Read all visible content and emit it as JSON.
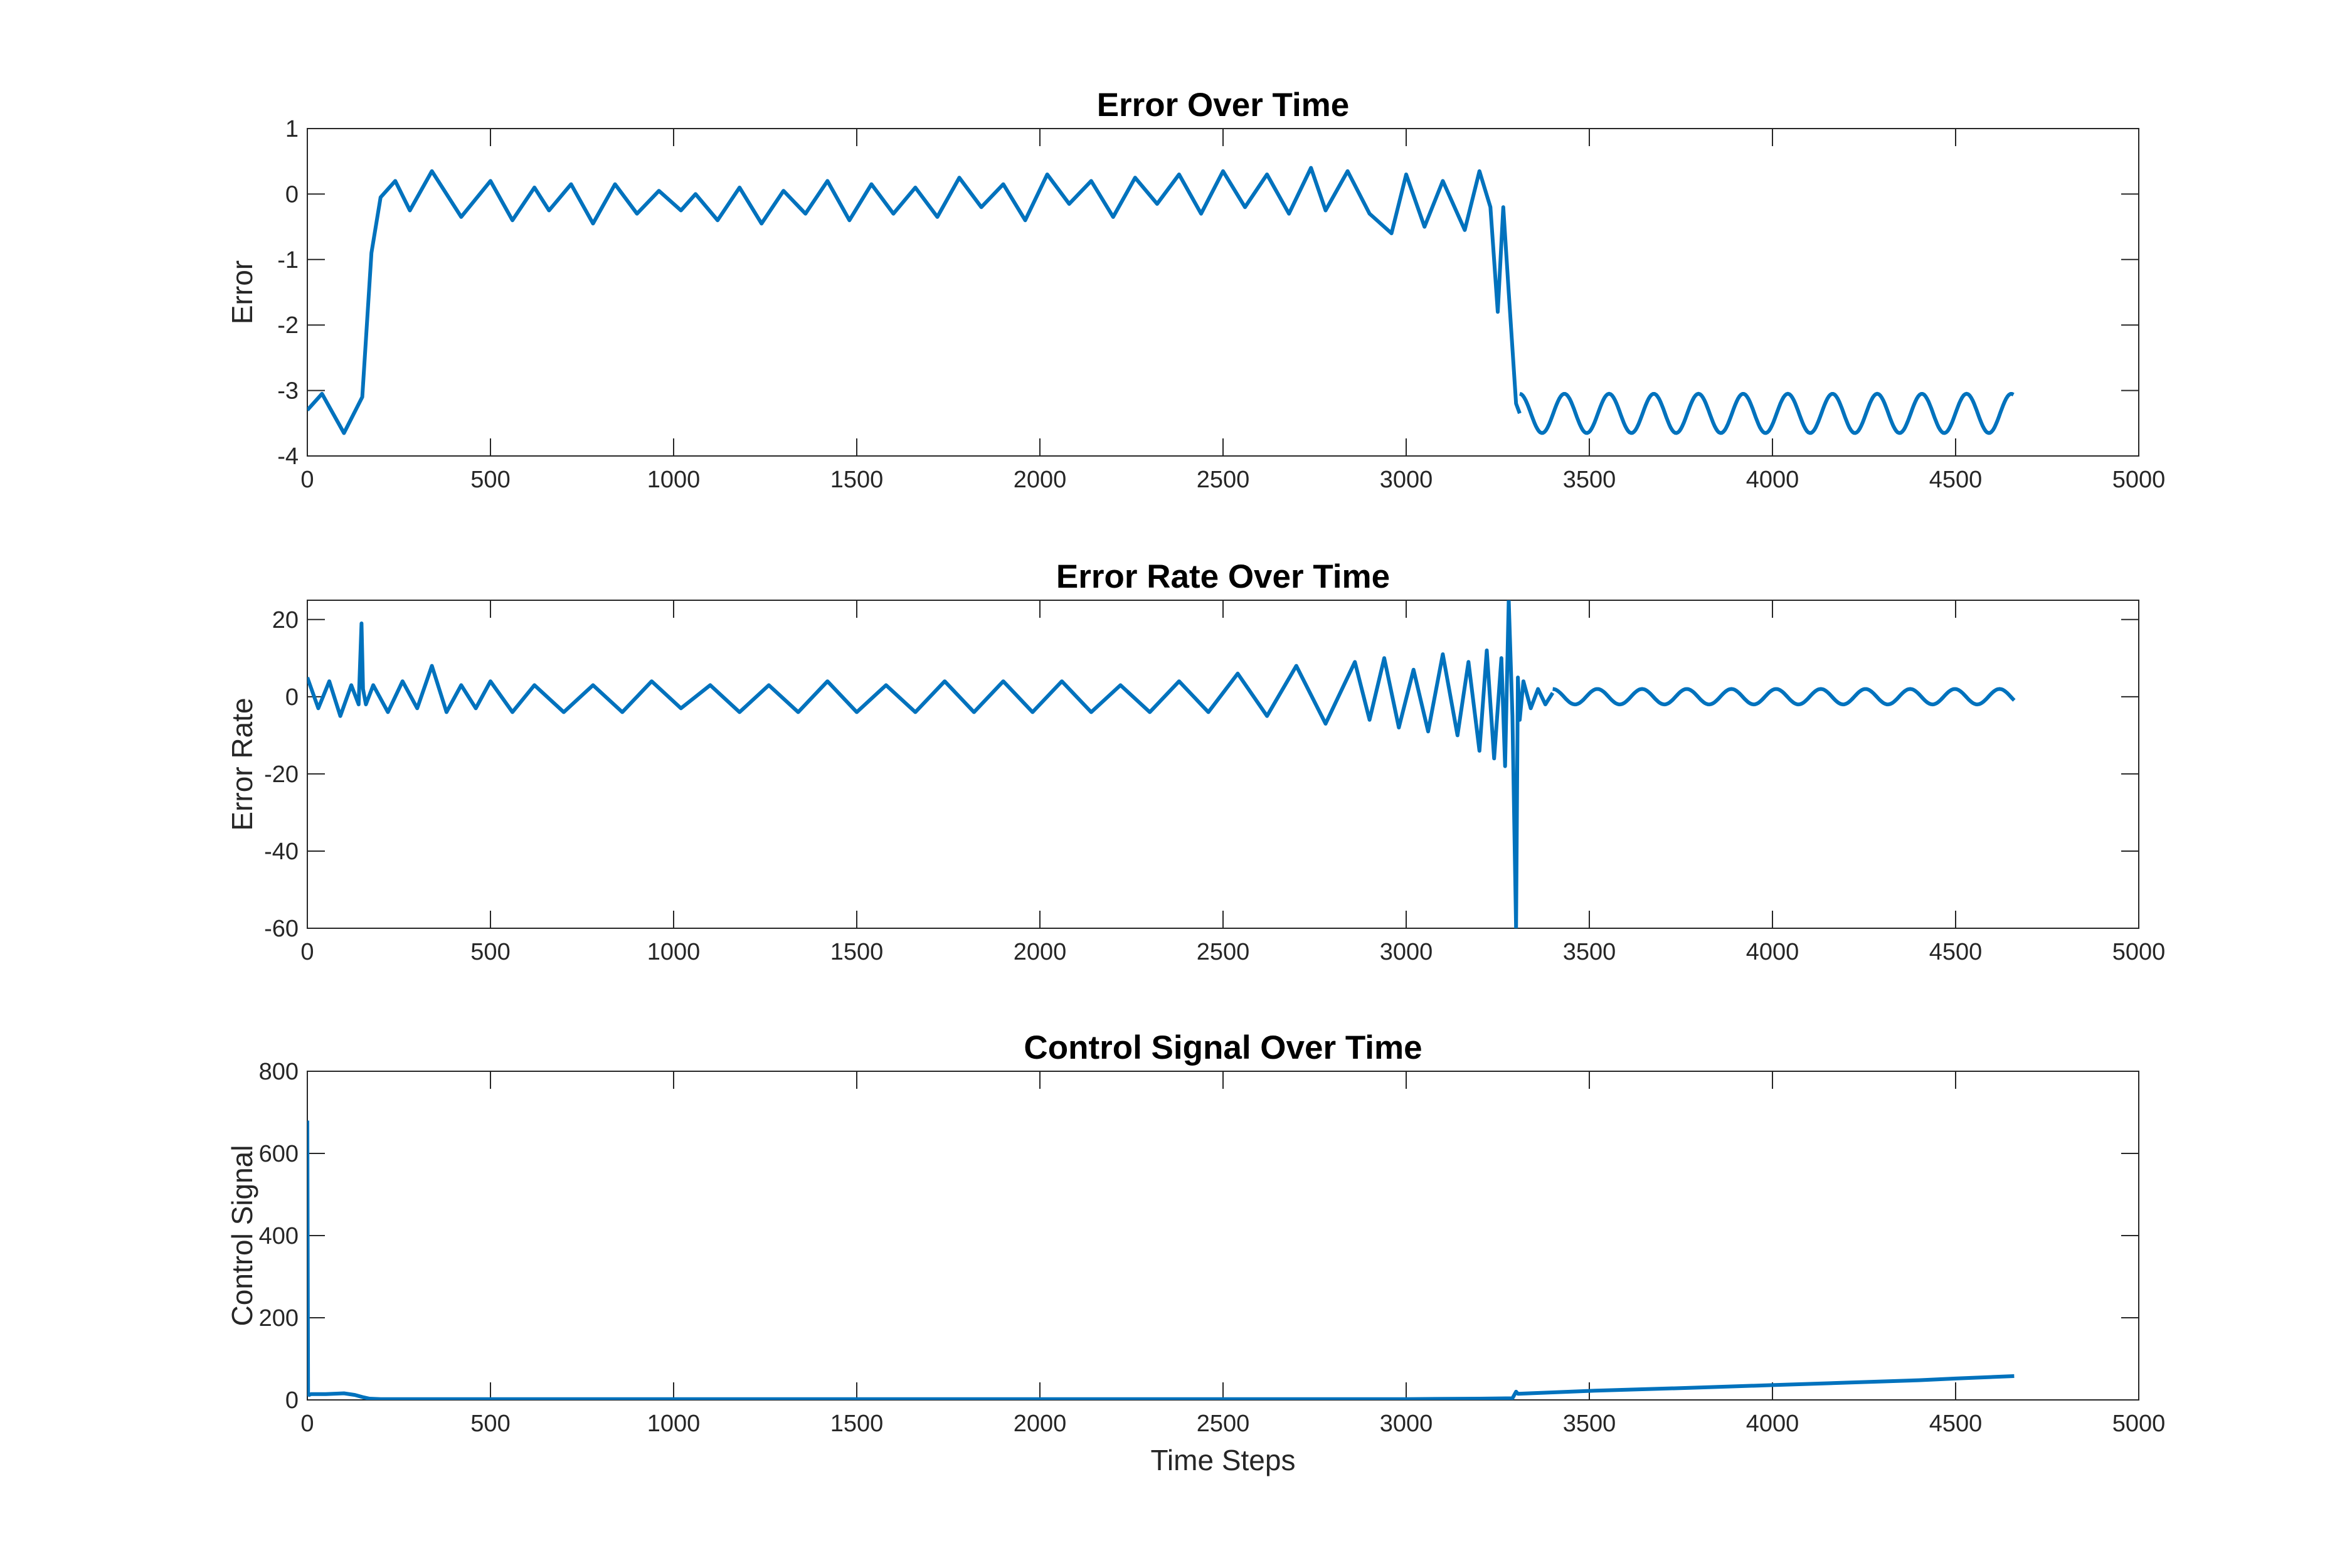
{
  "chart_data": [
    {
      "type": "line",
      "title": "Error Over Time",
      "xlabel": "",
      "ylabel": "Error",
      "xlim": [
        0,
        5000
      ],
      "ylim": [
        -4,
        1
      ],
      "xticks": [
        "0",
        "500",
        "1000",
        "1500",
        "2000",
        "2500",
        "3000",
        "3500",
        "4000",
        "4500",
        "5000"
      ],
      "yticks": [
        "-4",
        "-3",
        "-2",
        "-1",
        "0",
        "1"
      ],
      "grid": false,
      "color": "#0072BD",
      "series": [
        {
          "x": [
            0,
            40,
            100,
            150,
            175,
            200,
            240,
            280,
            340,
            420,
            500,
            560,
            620,
            660,
            720,
            780,
            840,
            900,
            960,
            1020,
            1060,
            1120,
            1180,
            1240,
            1300,
            1360,
            1420,
            1480,
            1540,
            1600,
            1660,
            1720,
            1780,
            1840,
            1900,
            1960,
            2020,
            2080,
            2140,
            2200,
            2260,
            2320,
            2380,
            2440,
            2500,
            2560,
            2620,
            2680,
            2740,
            2780,
            2840,
            2900,
            2960,
            3000,
            3050,
            3100,
            3160,
            3200,
            3230,
            3250,
            3265,
            3280,
            3300,
            3310
          ],
          "y": [
            -3.3,
            -3.05,
            -3.65,
            -3.1,
            -0.9,
            -0.05,
            0.2,
            -0.25,
            0.35,
            -0.35,
            0.2,
            -0.4,
            0.1,
            -0.25,
            0.15,
            -0.45,
            0.15,
            -0.3,
            0.05,
            -0.25,
            0.0,
            -0.4,
            0.1,
            -0.45,
            0.05,
            -0.3,
            0.2,
            -0.4,
            0.15,
            -0.3,
            0.1,
            -0.35,
            0.25,
            -0.2,
            0.15,
            -0.4,
            0.3,
            -0.15,
            0.2,
            -0.35,
            0.25,
            -0.15,
            0.3,
            -0.3,
            0.35,
            -0.2,
            0.3,
            -0.3,
            0.4,
            -0.25,
            0.35,
            -0.3,
            -0.6,
            0.3,
            -0.5,
            0.2,
            -0.55,
            0.35,
            -0.2,
            -1.8,
            -0.2,
            -1.5,
            -3.2,
            -3.35
          ]
        },
        {
          "type": "sine",
          "x_range": [
            3310,
            4660
          ],
          "center": -3.35,
          "amplitude": 0.3,
          "period": 122
        }
      ]
    },
    {
      "type": "line",
      "title": "Error Rate Over Time",
      "xlabel": "",
      "ylabel": "Error Rate",
      "xlim": [
        0,
        5000
      ],
      "ylim": [
        -60,
        25
      ],
      "xticks": [
        "0",
        "500",
        "1000",
        "1500",
        "2000",
        "2500",
        "3000",
        "3500",
        "4000",
        "4500",
        "5000"
      ],
      "yticks": [
        "-60",
        "-40",
        "-20",
        "0",
        "20"
      ],
      "grid": false,
      "color": "#0072BD",
      "series": [
        {
          "x": [
            0,
            30,
            60,
            90,
            120,
            140,
            148,
            152,
            160,
            180,
            220,
            260,
            300,
            340,
            380,
            420,
            460,
            500,
            560,
            620,
            700,
            780,
            860,
            940,
            1020,
            1100,
            1180,
            1260,
            1340,
            1420,
            1500,
            1580,
            1660,
            1740,
            1820,
            1900,
            1980,
            2060,
            2140,
            2220,
            2300,
            2380,
            2460,
            2540,
            2620,
            2700,
            2780,
            2860,
            2900,
            2940,
            2980,
            3020,
            3060,
            3100,
            3140,
            3170,
            3200,
            3220,
            3240,
            3260,
            3270,
            3280,
            3290,
            3300,
            3305,
            3310,
            3320,
            3340,
            3360,
            3380,
            3400
          ],
          "y": [
            5,
            -3,
            4,
            -5,
            3,
            -2,
            19,
            2,
            -2,
            3,
            -4,
            4,
            -3,
            8,
            -4,
            3,
            -3,
            4,
            -4,
            3,
            -4,
            3,
            -4,
            4,
            -3,
            3,
            -4,
            3,
            -4,
            4,
            -4,
            3,
            -4,
            4,
            -4,
            4,
            -4,
            4,
            -4,
            3,
            -4,
            4,
            -4,
            6,
            -5,
            8,
            -7,
            9,
            -6,
            10,
            -8,
            7,
            -9,
            11,
            -10,
            9,
            -14,
            12,
            -16,
            10,
            -18,
            25,
            -5,
            -60,
            5,
            -6,
            4,
            -3,
            2,
            -2,
            1
          ]
        },
        {
          "type": "sine",
          "x_range": [
            3400,
            4660
          ],
          "center": 0,
          "amplitude": 2,
          "period": 122
        }
      ]
    },
    {
      "type": "line",
      "title": "Control Signal Over Time",
      "xlabel": "Time Steps",
      "ylabel": "Control Signal",
      "xlim": [
        0,
        5000
      ],
      "ylim": [
        0,
        800
      ],
      "xticks": [
        "0",
        "500",
        "1000",
        "1500",
        "2000",
        "2500",
        "3000",
        "3500",
        "4000",
        "4500",
        "5000"
      ],
      "yticks": [
        "0",
        "200",
        "400",
        "600",
        "800"
      ],
      "grid": false,
      "color": "#0072BD",
      "series": [
        {
          "x": [
            0,
            2,
            5,
            10,
            50,
            100,
            130,
            150,
            170,
            200,
            500,
            1000,
            1500,
            2000,
            2500,
            3000,
            3200,
            3290,
            3300,
            3305,
            3500,
            3800,
            4000,
            4200,
            4400,
            4500,
            4660
          ],
          "y": [
            680,
            15,
            12,
            14,
            14,
            16,
            12,
            7,
            3,
            2,
            2,
            2,
            2,
            2,
            2,
            2,
            3,
            4,
            20,
            15,
            22,
            30,
            36,
            42,
            48,
            52,
            58
          ]
        }
      ]
    }
  ]
}
